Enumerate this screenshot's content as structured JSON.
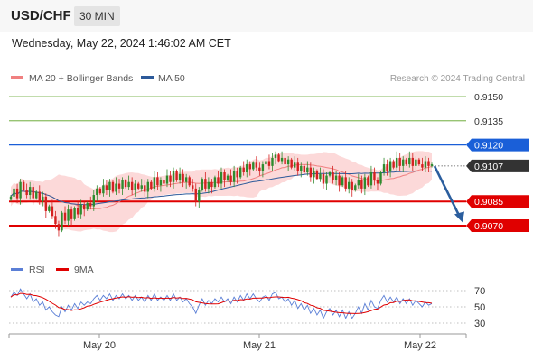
{
  "header": {
    "symbol": "USD/CHF",
    "timeframe": "30 MIN",
    "timestamp": "Wednesday, May 22, 2024 1:46:02 AM CET",
    "source": "Research © 2024 Trading Central"
  },
  "legend": {
    "main": [
      {
        "label": "MA 20 + Bollinger Bands",
        "color": "#f08080"
      },
      {
        "label": "MA 50",
        "color": "#2d5a9a"
      }
    ],
    "rsi": [
      {
        "label": "RSI",
        "color": "#5b7fd6"
      },
      {
        "label": "9MA",
        "color": "#e00000"
      }
    ]
  },
  "colors": {
    "up": "#2e8b2e",
    "down": "#d42020",
    "bands": "#fcd9d9",
    "resistance": "#5aa020",
    "pivot": "#1a5fd8",
    "support": "#e00000",
    "current": "#333333",
    "arrow": "#2b5e9e"
  },
  "chart_data": [
    {
      "type": "candlestick",
      "x_ticks": [
        "May 20",
        "May 21",
        "May 22"
      ],
      "ylim": [
        9048,
        9160
      ],
      "price_scale": 0.0001,
      "levels": [
        {
          "label": "0.9150",
          "value": 9150,
          "kind": "resistance"
        },
        {
          "label": "0.9135",
          "value": 9135,
          "kind": "resistance"
        },
        {
          "label": "0.9120",
          "value": 9120,
          "kind": "pivot"
        },
        {
          "label": "0.9107",
          "value": 9107,
          "kind": "current"
        },
        {
          "label": "0.9085",
          "value": 9085,
          "kind": "support"
        },
        {
          "label": "0.9070",
          "value": 9070,
          "kind": "support"
        }
      ],
      "closes": [
        9088,
        9093,
        9087,
        9097,
        9092,
        9089,
        9094,
        9087,
        9091,
        9085,
        9088,
        9079,
        9082,
        9076,
        9071,
        9067,
        9078,
        9073,
        9080,
        9074,
        9081,
        9077,
        9083,
        9080,
        9084,
        9082,
        9089,
        9093,
        9090,
        9095,
        9092,
        9097,
        9091,
        9096,
        9093,
        9098,
        9094,
        9097,
        9092,
        9096,
        9093,
        9095,
        9091,
        9097,
        9093,
        9100,
        9095,
        9098,
        9096,
        9101,
        9097,
        9104,
        9098,
        9102,
        9097,
        9100,
        9095,
        9093,
        9085,
        9092,
        9099,
        9093,
        9097,
        9094,
        9100,
        9096,
        9103,
        9098,
        9101,
        9097,
        9104,
        9100,
        9106,
        9103,
        9108,
        9105,
        9109,
        9106,
        9104,
        9108,
        9110,
        9107,
        9112,
        9114,
        9110,
        9112,
        9108,
        9111,
        9106,
        9109,
        9104,
        9107,
        9103,
        9106,
        9100,
        9104,
        9099,
        9102,
        9096,
        9101,
        9103,
        9098,
        9101,
        9095,
        9100,
        9093,
        9097,
        9092,
        9095,
        9098,
        9093,
        9100,
        9095,
        9103,
        9098,
        9096,
        9103,
        9108,
        9104,
        9110,
        9106,
        9112,
        9107,
        9111,
        9108,
        9112,
        9107,
        9111,
        9108,
        9106,
        9110,
        9107,
        9108
      ]
    },
    {
      "type": "line",
      "name": "RSI",
      "y_ticks": [
        70,
        50,
        30
      ],
      "ylim": [
        20,
        80
      ],
      "rsi_values": [
        62,
        68,
        64,
        72,
        66,
        60,
        66,
        56,
        60,
        52,
        56,
        46,
        50,
        44,
        40,
        38,
        50,
        44,
        52,
        46,
        54,
        48,
        56,
        52,
        56,
        54,
        60,
        64,
        58,
        64,
        60,
        66,
        58,
        64,
        60,
        66,
        60,
        64,
        58,
        64,
        58,
        62,
        56,
        64,
        58,
        66,
        58,
        62,
        58,
        64,
        58,
        66,
        58,
        62,
        56,
        60,
        54,
        50,
        42,
        52,
        60,
        52,
        58,
        54,
        60,
        56,
        62,
        56,
        60,
        54,
        62,
        56,
        64,
        58,
        66,
        60,
        66,
        60,
        56,
        62,
        64,
        58,
        66,
        68,
        60,
        62,
        56,
        60,
        52,
        58,
        48,
        54,
        46,
        52,
        42,
        48,
        40,
        46,
        36,
        44,
        48,
        40,
        46,
        38,
        46,
        36,
        44,
        36,
        42,
        50,
        42,
        54,
        46,
        58,
        50,
        48,
        58,
        64,
        56,
        62,
        56,
        62,
        54,
        60,
        54,
        60,
        52,
        58,
        54,
        50,
        56,
        52,
        54
      ]
    }
  ]
}
